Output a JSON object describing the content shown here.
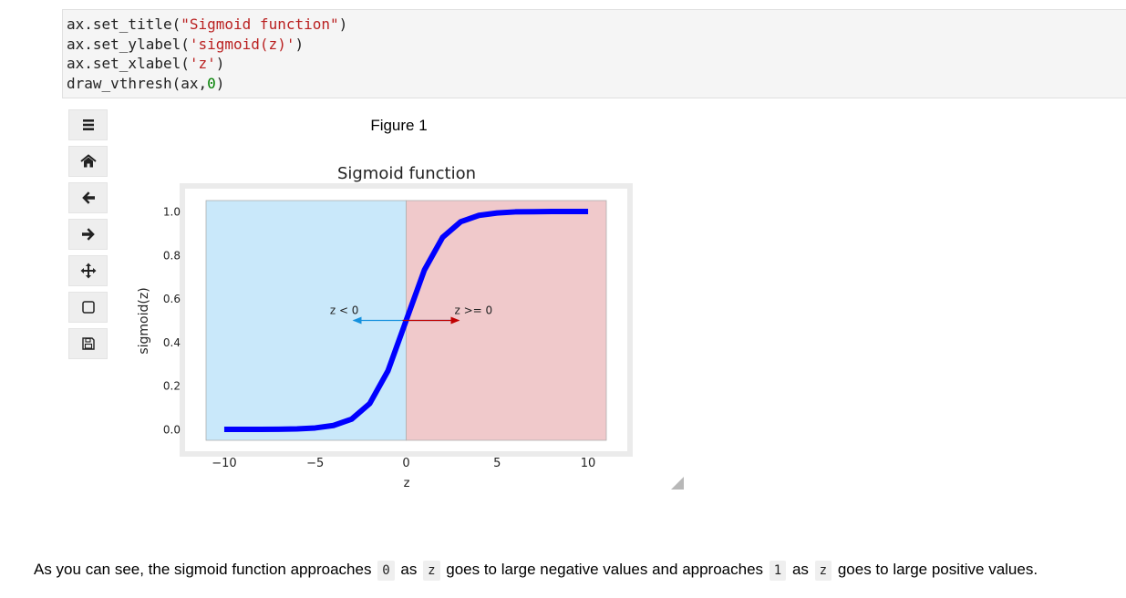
{
  "code": {
    "line1": {
      "pre": "ax.set_title(",
      "str": "\"Sigmoid function\"",
      "post": ")"
    },
    "line2": {
      "pre": "ax.set_ylabel(",
      "str": "'sigmoid(z)'",
      "post": ")"
    },
    "line3": {
      "pre": "ax.set_xlabel(",
      "str": "'z'",
      "post": ")"
    },
    "line4": {
      "pre": "draw_vthresh(ax,",
      "num": "0",
      "post": ")"
    }
  },
  "figure": {
    "title": "Figure 1",
    "toolbar": [
      "menu-icon",
      "home-icon",
      "back-arrow-icon",
      "forward-arrow-icon",
      "pan-icon",
      "zoom-rect-icon",
      "save-icon"
    ]
  },
  "chart_data": {
    "type": "line",
    "title": "Sigmoid function",
    "xlabel": "z",
    "ylabel": "sigmoid(z)",
    "xlim": [
      -11,
      11
    ],
    "ylim": [
      -0.05,
      1.05
    ],
    "xticks": [
      -10,
      -5,
      0,
      5,
      10
    ],
    "xtick_labels": [
      "−10",
      "−5",
      "0",
      "5",
      "10"
    ],
    "yticks": [
      0.0,
      0.2,
      0.4,
      0.6,
      0.8,
      1.0
    ],
    "ytick_labels": [
      "0.0",
      "0.2",
      "0.4",
      "0.6",
      "0.8",
      "1.0"
    ],
    "grid": false,
    "line_color": "#0000ff",
    "x": [
      -10,
      -9,
      -8,
      -7,
      -6,
      -5,
      -4,
      -3,
      -2,
      -1,
      0,
      1,
      2,
      3,
      4,
      5,
      6,
      7,
      8,
      9,
      10
    ],
    "y": [
      0.0,
      0.0001,
      0.0003,
      0.0009,
      0.0025,
      0.0067,
      0.018,
      0.047,
      0.119,
      0.269,
      0.5,
      0.731,
      0.881,
      0.953,
      0.982,
      0.993,
      0.998,
      0.999,
      1.0,
      1.0,
      1.0
    ],
    "regions": [
      {
        "x0": -11,
        "x1": 0,
        "color": "#c9e8fa"
      },
      {
        "x0": 0,
        "x1": 11,
        "color": "#f0c9cb"
      }
    ],
    "annotations": [
      {
        "text": "z < 0",
        "x": -3.4,
        "y": 0.53,
        "arrow_from": 2.4,
        "arrow_to": -2.9,
        "arrow_y": 0.5,
        "color": "#1591de"
      },
      {
        "text": "z >= 0",
        "x": 3.7,
        "y": 0.53,
        "arrow_from": -0.2,
        "arrow_to": 2.9,
        "arrow_y": 0.5,
        "color": "#c00000"
      }
    ]
  },
  "markdown": {
    "p1": "As you can see, the sigmoid function approaches",
    "c1": "0",
    "p2": "as",
    "c2": "z",
    "p3": "goes to large negative values and approaches",
    "c3": "1",
    "p4": "as",
    "c4": "z",
    "p5": "goes to large positive values."
  }
}
